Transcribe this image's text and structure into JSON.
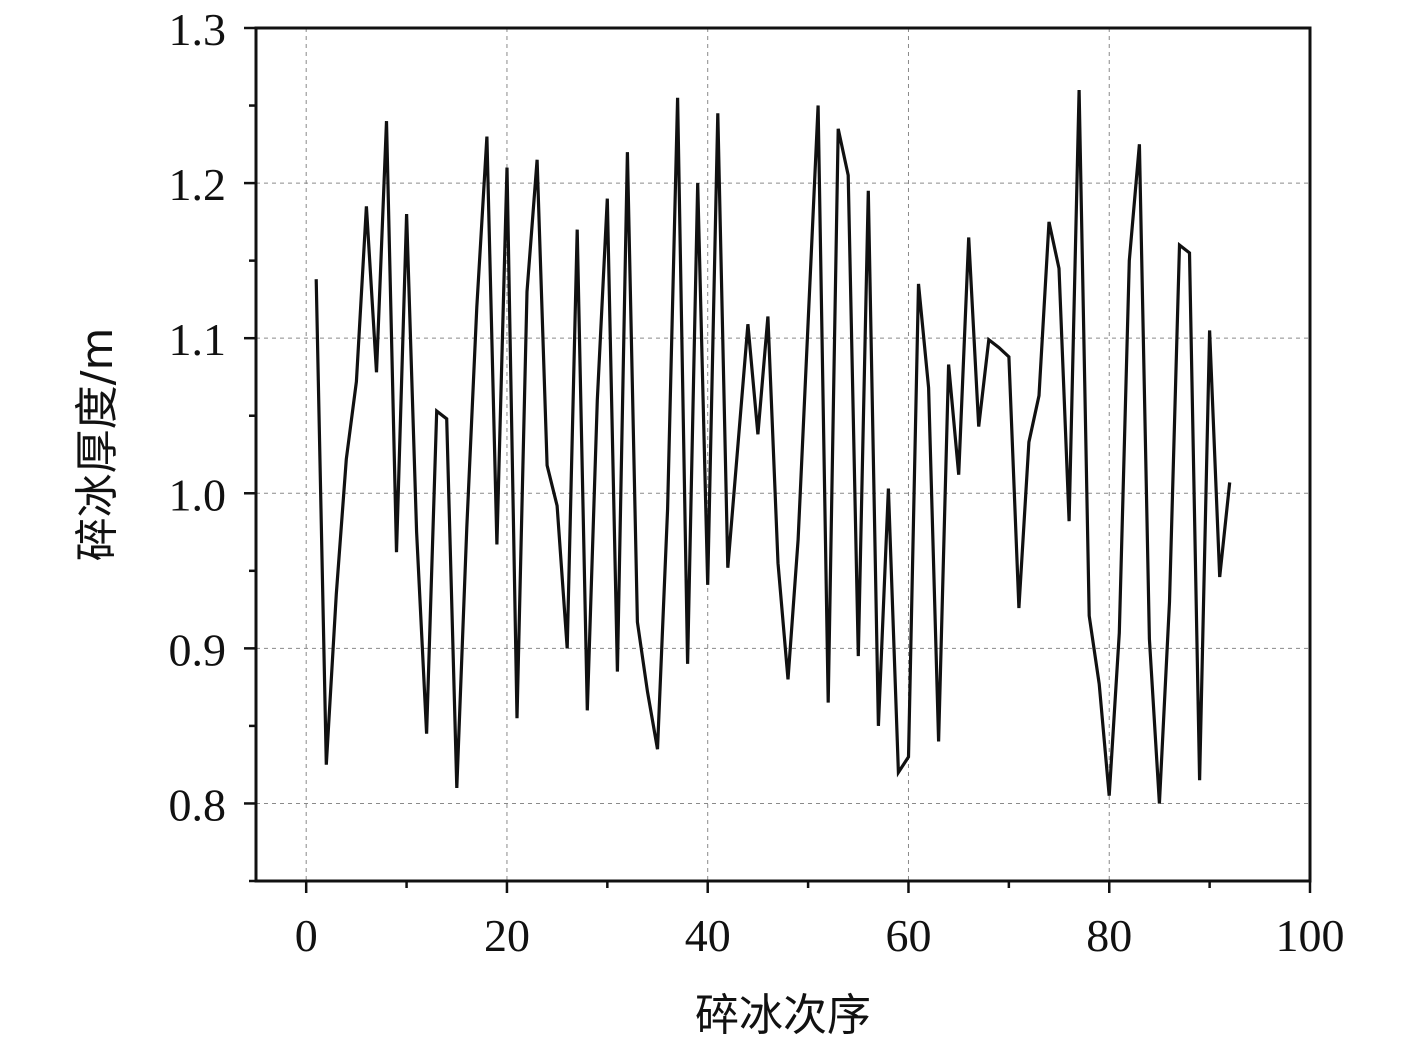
{
  "chart_data": {
    "type": "line",
    "title": "",
    "xlabel": "碎冰次序",
    "ylabel": "碎冰厚度/m",
    "xlim": [
      -5,
      100
    ],
    "ylim": [
      0.75,
      1.3
    ],
    "xticks": [
      0,
      20,
      40,
      60,
      80,
      100
    ],
    "xtick_labels": [
      "0",
      "20",
      "40",
      "60",
      "80",
      "100"
    ],
    "yticks": [
      0.8,
      0.9,
      1.0,
      1.1,
      1.2,
      1.3
    ],
    "ytick_labels": [
      "0.8",
      "0.9",
      "1.0",
      "1.1",
      "1.2",
      "1.3"
    ],
    "grid": true,
    "line_color": "#111111",
    "series": [
      {
        "x": [
          1,
          2,
          3,
          4,
          5,
          6,
          7,
          8,
          9,
          10,
          11,
          12,
          13,
          14,
          15,
          16,
          17,
          18,
          19,
          20,
          21,
          22,
          23,
          24,
          25,
          26,
          27,
          28,
          29,
          30,
          31,
          32,
          33,
          34,
          35,
          36,
          37,
          38,
          39,
          40,
          41,
          42,
          43,
          44,
          45,
          46,
          47,
          48,
          49,
          50,
          51,
          52,
          53,
          54,
          55,
          56,
          57,
          58,
          59,
          60,
          61,
          62,
          63,
          64,
          65,
          66,
          67,
          68,
          69,
          70,
          71,
          72,
          73,
          74,
          75,
          76,
          77,
          78,
          79,
          80,
          81,
          82,
          83,
          84,
          85,
          86,
          87,
          88,
          89,
          90,
          91,
          92
        ],
        "values": [
          1.138,
          0.825,
          0.935,
          1.022,
          1.072,
          1.185,
          1.078,
          1.24,
          0.962,
          1.18,
          0.975,
          0.845,
          1.053,
          1.048,
          0.81,
          0.978,
          1.12,
          1.23,
          0.967,
          1.21,
          0.855,
          1.13,
          1.215,
          1.018,
          0.992,
          0.9,
          1.17,
          0.86,
          1.06,
          1.19,
          0.885,
          1.22,
          0.917,
          0.872,
          0.835,
          0.99,
          1.255,
          0.89,
          1.2,
          0.941,
          1.245,
          0.952,
          1.03,
          1.109,
          1.038,
          1.114,
          0.955,
          0.88,
          0.97,
          1.11,
          1.25,
          0.865,
          1.235,
          1.205,
          0.895,
          1.195,
          0.85,
          1.003,
          0.82,
          0.83,
          1.135,
          1.068,
          0.84,
          1.083,
          1.012,
          1.165,
          1.043,
          1.099,
          1.094,
          1.088,
          0.926,
          1.033,
          1.063,
          1.175,
          1.145,
          0.982,
          1.26,
          0.921,
          0.877,
          0.805,
          0.91,
          1.15,
          1.225,
          0.906,
          0.8,
          0.93,
          1.16,
          1.155,
          0.815,
          1.105,
          0.946,
          1.007
        ]
      }
    ]
  }
}
